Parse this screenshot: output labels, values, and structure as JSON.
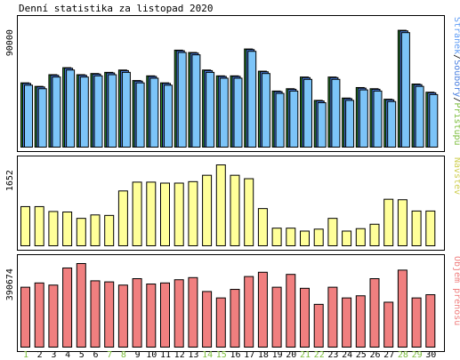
{
  "chart_data": {
    "type": "bar",
    "title": "Denní statistika za listopad 2020",
    "categories": [
      "1",
      "2",
      "3",
      "4",
      "5",
      "6",
      "7",
      "8",
      "9",
      "10",
      "11",
      "12",
      "13",
      "14",
      "15",
      "16",
      "17",
      "18",
      "19",
      "20",
      "21",
      "22",
      "23",
      "24",
      "25",
      "26",
      "27",
      "28",
      "29",
      "30"
    ],
    "weekend_days": [
      "1",
      "7",
      "8",
      "14",
      "15",
      "21",
      "22",
      "28",
      "29"
    ],
    "colors": {
      "frame": "#000000",
      "hits": "#7cc4f8",
      "files": "#4a7fe0",
      "pages": "#2e8b2e",
      "visits": "#ffff99",
      "volume": "#f07f7f",
      "weekday_label": "#000000",
      "weekend_label": "#7cbd3c",
      "hits_label": "#5d9bf5",
      "files_label": "#4a7fe0",
      "pages_label": "#7cbd3c",
      "visits_label": "#cfcf52",
      "volume_label": "#f07f7f"
    },
    "panels": [
      {
        "id": "requests",
        "ylabel_parts": [
          {
            "text": "Stránek",
            "color_key": "hits_label"
          },
          {
            "text": "/",
            "color_key": "frame"
          },
          {
            "text": "Soubory",
            "color_key": "files_label"
          },
          {
            "text": "/",
            "color_key": "frame"
          },
          {
            "text": "Přístupů",
            "color_key": "pages_label"
          }
        ],
        "max_tick": "90000",
        "ylim": [
          0,
          105000
        ],
        "series": [
          {
            "name": "Přístupů",
            "color_key": "pages",
            "values": [
              55000,
              52000,
              62000,
              68000,
              62000,
              63000,
              64000,
              66000,
              57000,
              61000,
              55000,
              83000,
              81000,
              66000,
              61000,
              61000,
              84000,
              65000,
              48000,
              50000,
              60000,
              40000,
              60000,
              42000,
              51000,
              50000,
              41000,
              100000,
              54000,
              47000
            ]
          },
          {
            "name": "Soubory",
            "color_key": "files",
            "values": [
              54500,
              51500,
              61500,
              67500,
              61500,
              62500,
              63500,
              65500,
              56500,
              60500,
              54500,
              82500,
              80500,
              65500,
              60500,
              60500,
              83500,
              64500,
              47500,
              49500,
              59500,
              39500,
              59500,
              41500,
              50500,
              49500,
              40500,
              99500,
              53500,
              46500
            ]
          },
          {
            "name": "Stránek",
            "color_key": "hits",
            "values": [
              53000,
              50000,
              60000,
              66000,
              60000,
              61000,
              62000,
              64000,
              55000,
              59000,
              53000,
              81000,
              79000,
              64000,
              59000,
              59000,
              82000,
              63000,
              46000,
              48000,
              58000,
              38000,
              58000,
              40000,
              49000,
              48000,
              39000,
              98000,
              52000,
              45000
            ]
          }
        ]
      },
      {
        "id": "visits",
        "ylabel_parts": [
          {
            "text": "Návštěv",
            "color_key": "visits_label"
          }
        ],
        "max_tick": "1652",
        "ylim": [
          0,
          1652
        ],
        "series": [
          {
            "name": "Návštěv",
            "color_key": "visits",
            "values": [
              800,
              800,
              700,
              690,
              560,
              630,
              620,
              1120,
              1300,
              1300,
              1280,
              1280,
              1310,
              1440,
              1652,
              1440,
              1370,
              760,
              360,
              360,
              300,
              340,
              560,
              300,
              350,
              440,
              950,
              940,
              710,
              710
            ]
          }
        ]
      },
      {
        "id": "volume",
        "ylabel_parts": [
          {
            "text": "Objem přenosu",
            "color_key": "volume_label"
          }
        ],
        "max_tick": "390674",
        "ylim": [
          0,
          390674
        ],
        "series": [
          {
            "name": "Objem přenosu",
            "color_key": "volume",
            "values": [
              280000,
              300000,
              290000,
              370000,
              390674,
              310000,
              305000,
              290000,
              320000,
              295000,
              300000,
              315000,
              325000,
              260000,
              230000,
              270000,
              330000,
              350000,
              280000,
              340000,
              275000,
              200000,
              280000,
              230000,
              240000,
              320000,
              210000,
              360000,
              230000,
              245000
            ]
          }
        ]
      }
    ]
  }
}
